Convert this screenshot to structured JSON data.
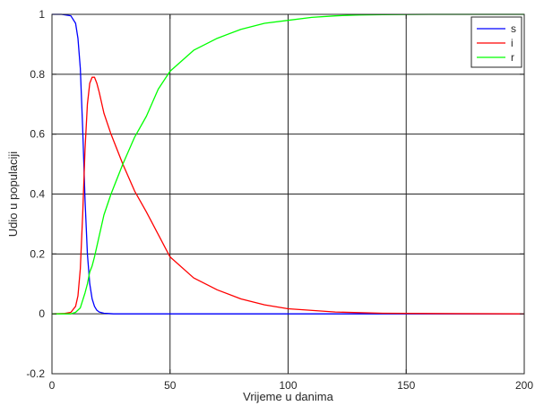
{
  "chart_data": {
    "type": "line",
    "title": "",
    "xlabel": "Vrijeme u danima",
    "ylabel": "Udio u populaciji",
    "xlim": [
      0,
      200
    ],
    "ylim": [
      -0.2,
      1
    ],
    "xticks": [
      0,
      50,
      100,
      150,
      200
    ],
    "yticks": [
      -0.2,
      0,
      0.2,
      0.4,
      0.6,
      0.8,
      1
    ],
    "xtick_labels": [
      "0",
      "50",
      "100",
      "150",
      "200"
    ],
    "ytick_labels": [
      "-0.2",
      "0",
      "0.2",
      "0.4",
      "0.6",
      "0.8",
      "1"
    ],
    "grid": true,
    "legend_position": "top-right",
    "series": [
      {
        "name": "s",
        "color": "#0000ff",
        "x": [
          0,
          4,
          8,
          10,
          11,
          12,
          13,
          14,
          15,
          16,
          17,
          18,
          19,
          20,
          22,
          24,
          26,
          30,
          50,
          100,
          200
        ],
        "y": [
          1,
          1,
          0.995,
          0.97,
          0.92,
          0.82,
          0.62,
          0.38,
          0.2,
          0.1,
          0.05,
          0.025,
          0.012,
          0.006,
          0.002,
          0.001,
          0,
          0,
          0,
          0,
          0
        ]
      },
      {
        "name": "i",
        "color": "#ff0000",
        "x": [
          0,
          5,
          8,
          10,
          11,
          12,
          13,
          14,
          15,
          16,
          17,
          18,
          19,
          20,
          22,
          25,
          30,
          35,
          40,
          50,
          60,
          70,
          80,
          90,
          100,
          120,
          140,
          160,
          200
        ],
        "y": [
          0,
          0.001,
          0.005,
          0.025,
          0.06,
          0.15,
          0.33,
          0.55,
          0.7,
          0.77,
          0.79,
          0.79,
          0.77,
          0.74,
          0.67,
          0.6,
          0.5,
          0.41,
          0.34,
          0.19,
          0.12,
          0.08,
          0.05,
          0.03,
          0.017,
          0.006,
          0.002,
          0.001,
          0
        ]
      },
      {
        "name": "r",
        "color": "#00ff00",
        "x": [
          0,
          5,
          8,
          10,
          12,
          14,
          15,
          16,
          17,
          18,
          20,
          22,
          25,
          30,
          35,
          40,
          45,
          50,
          60,
          70,
          80,
          90,
          100,
          110,
          120,
          130,
          140,
          160,
          200
        ],
        "y": [
          0,
          0,
          0,
          0.005,
          0.02,
          0.07,
          0.1,
          0.14,
          0.16,
          0.19,
          0.26,
          0.33,
          0.4,
          0.5,
          0.59,
          0.66,
          0.75,
          0.81,
          0.88,
          0.92,
          0.95,
          0.97,
          0.98,
          0.99,
          0.995,
          0.998,
          0.999,
          1,
          1
        ]
      }
    ]
  }
}
